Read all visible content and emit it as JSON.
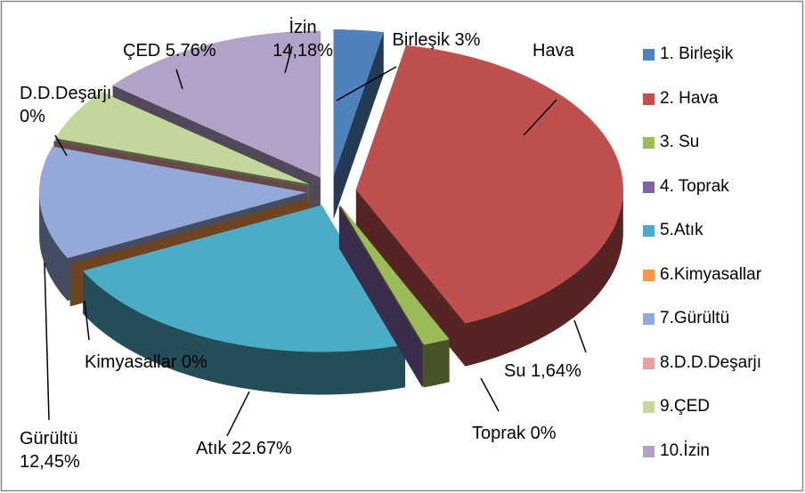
{
  "chart_data": {
    "type": "pie3d",
    "categories": [
      "1. Birleşik",
      "2. Hava",
      "3. Su",
      "4. Toprak",
      "5.Atık",
      "6.Kimyasallar",
      "7.Gürültü",
      "8.D.D.Deşarjı",
      "9.ÇED",
      "10.İzin"
    ],
    "values": [
      3,
      40.3,
      1.64,
      0,
      22.67,
      0,
      12.45,
      0,
      5.76,
      14.18
    ],
    "value_labels": [
      "Birleşik 3%",
      "Hava",
      "Su 1,64%",
      "Toprak 0%",
      "Atık 22.67%",
      "Kimyasallar 0%",
      "Gürültü 12,45%",
      "D.D.Deşarjı 0%",
      "ÇED 5.76%",
      "İzin 14,18%"
    ],
    "colors": [
      "#4f81bd",
      "#c0504d",
      "#9bbb59",
      "#8064a2",
      "#4bacc6",
      "#f79646",
      "#95a9d8",
      "#e6a0a0",
      "#c3d69b",
      "#b3a2c7"
    ],
    "legend": "right"
  }
}
